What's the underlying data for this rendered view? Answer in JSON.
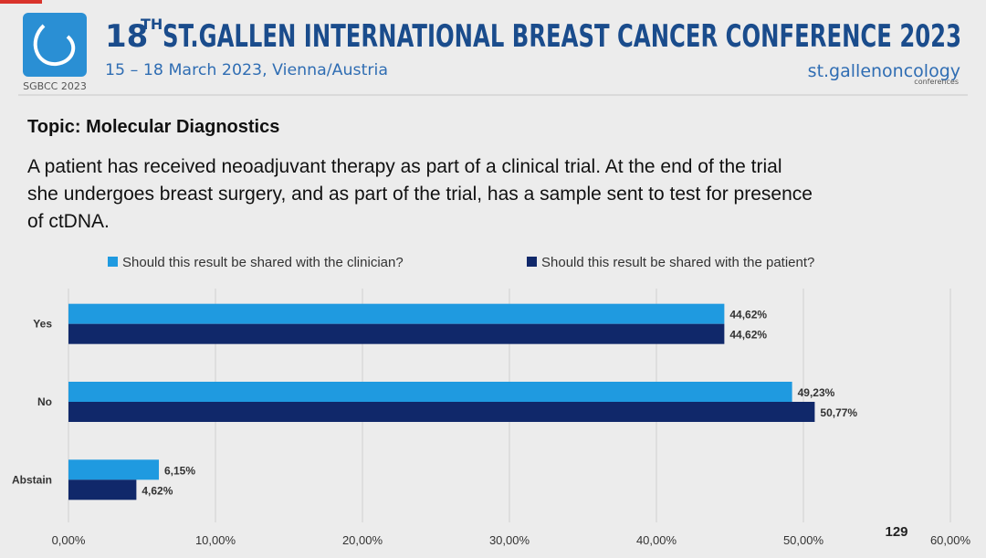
{
  "header": {
    "title_number": "18",
    "title_suffix": "TH",
    "title_rest": "ST.GALLEN INTERNATIONAL BREAST CANCER CONFERENCE 2023",
    "date_place": "15 – 18 March 2023, Vienna/Austria",
    "logo_caption": "SGBCC 2023",
    "brand": "st.gallenoncology",
    "brand_sub": "conferences"
  },
  "topic": "Topic: Molecular Diagnostics",
  "question_lines": [
    "A patient has received neoadjuvant therapy as part of a clinical trial. At the end of the trial",
    "she undergoes breast surgery, and as part of the trial, has a sample sent to test for presence",
    "of ctDNA."
  ],
  "page_number": "129",
  "chart_data": {
    "type": "hbar",
    "categories": [
      "Yes",
      "No",
      "Abstain"
    ],
    "series": [
      {
        "name": "Should this result be shared with the clinician?",
        "color": "#1f9ae0",
        "values": [
          44.62,
          49.23,
          6.15
        ],
        "value_labels": [
          "44,62%",
          "49,23%",
          "6,15%"
        ]
      },
      {
        "name": "Should this result be shared with the patient?",
        "color": "#10286a",
        "values": [
          44.62,
          50.77,
          4.62
        ],
        "value_labels": [
          "44,62%",
          "50,77%",
          "4,62%"
        ]
      }
    ],
    "xlim": [
      0,
      60
    ],
    "xticks": [
      {
        "value": 0,
        "label": "0,00%"
      },
      {
        "value": 10,
        "label": "10,00%"
      },
      {
        "value": 20,
        "label": "20,00%"
      },
      {
        "value": 30,
        "label": "30,00%"
      },
      {
        "value": 40,
        "label": "40,00%"
      },
      {
        "value": 50,
        "label": "50,00%"
      },
      {
        "value": 60,
        "label": "60,00%"
      }
    ],
    "grid": true,
    "legend": "top"
  }
}
